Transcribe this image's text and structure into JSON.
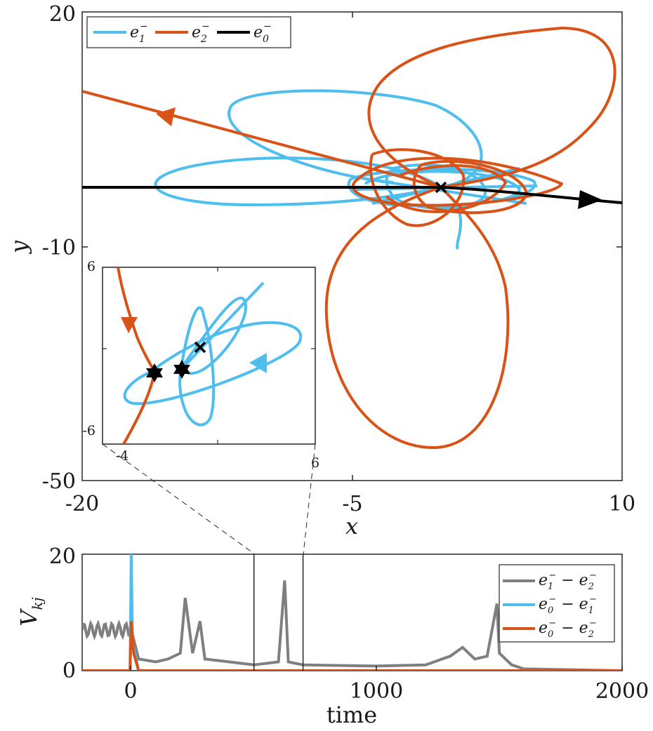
{
  "colors": {
    "e1": "#4DBEEE",
    "e2": "#D95319",
    "e0": "#000000",
    "gray": "#7F7F7F"
  },
  "chart_data": [
    {
      "type": "line",
      "title": "",
      "xlabel": "x",
      "ylabel": "y",
      "xlim": [
        -20,
        10
      ],
      "ylim": [
        -50,
        20
      ],
      "xticks": [
        "-20",
        "-5",
        "10"
      ],
      "yticks": [
        "-50",
        "-10",
        "20"
      ],
      "grid": false,
      "legend_position": "top-left",
      "legend": [
        "e_1^-",
        "e_2^-",
        "e_0^-"
      ],
      "series": [
        {
          "name": "e_1^-",
          "color": "#4DBEEE",
          "description_points": [
            [
              1,
              0
            ],
            [
              -10,
              1
            ],
            [
              -5,
              3
            ],
            [
              -8,
              10
            ],
            [
              2,
              3
            ],
            [
              3,
              -7
            ]
          ]
        },
        {
          "name": "e_2^-",
          "color": "#D95319",
          "points": [
            [
              -20,
              11
            ],
            [
              -13,
              7
            ],
            [
              -3,
              4
            ],
            [
              1,
              0
            ],
            [
              -4,
              16
            ],
            [
              8,
              14
            ],
            [
              4,
              -3
            ],
            [
              -6,
              -15
            ],
            [
              3,
              -39
            ],
            [
              9,
              -9
            ]
          ]
        },
        {
          "name": "e_0^-",
          "color": "#000000",
          "points": [
            [
              -20,
              0
            ],
            [
              0,
              0
            ],
            [
              3,
              -1
            ],
            [
              8,
              -2
            ],
            [
              10,
              -2.5
            ]
          ]
        }
      ],
      "markers": [
        {
          "type": "x",
          "x": 1,
          "y": 0
        }
      ]
    },
    {
      "type": "line",
      "inset": true,
      "xlim": [
        -4,
        6
      ],
      "ylim": [
        -6,
        6
      ],
      "xticks": [
        "-4",
        "6"
      ],
      "yticks": [
        "-6",
        "6"
      ],
      "markers": [
        {
          "type": "x",
          "x": 1.4,
          "y": 0.3
        },
        {
          "type": "hexagram",
          "x": -2.0,
          "y": -1.6
        },
        {
          "type": "hexagram",
          "x": 0.4,
          "y": -1.3
        }
      ]
    },
    {
      "type": "line",
      "title": "",
      "xlabel": "time",
      "ylabel": "V_kj",
      "xlim": [
        -200,
        2000
      ],
      "ylim": [
        0,
        20
      ],
      "xticks": [
        "0",
        "1000",
        "2000"
      ],
      "yticks": [
        "0",
        "20"
      ],
      "legend_position": "top-right",
      "legend": [
        "e_1^- − e_2^-",
        "e_0^- − e_1^-",
        "e_0^- − e_2^-"
      ],
      "window": [
        500,
        700
      ],
      "series": [
        {
          "name": "e_1^- − e_2^-",
          "color": "#7F7F7F",
          "x": [
            -200,
            0,
            30,
            100,
            150,
            200,
            220,
            250,
            280,
            300,
            400,
            500,
            600,
            625,
            640,
            700,
            1000,
            1200,
            1300,
            1350,
            1400,
            1450,
            1490,
            1500,
            1550,
            1600,
            2000
          ],
          "y": [
            7,
            7,
            2,
            1.5,
            2,
            3,
            12.5,
            3,
            8.5,
            2,
            1.5,
            1,
            1.5,
            15.5,
            1.5,
            1,
            0.8,
            1,
            2.5,
            4,
            2,
            2.5,
            11.5,
            3,
            1,
            0.3,
            0
          ]
        },
        {
          "name": "e_0^- − e_1^-",
          "color": "#4DBEEE",
          "x": [
            -200,
            -5,
            0,
            5,
            30,
            2000
          ],
          "y": [
            0,
            0,
            20,
            5,
            0,
            0
          ]
        },
        {
          "name": "e_0^- − e_2^-",
          "color": "#D95319",
          "x": [
            -200,
            -5,
            0,
            10,
            30,
            2000
          ],
          "y": [
            0,
            0,
            8.5,
            3,
            0,
            0
          ]
        }
      ]
    }
  ]
}
